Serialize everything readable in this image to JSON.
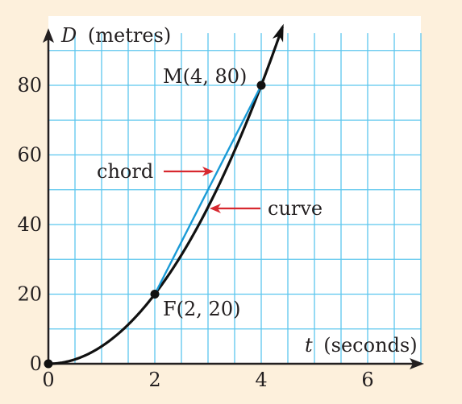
{
  "chart_data": {
    "type": "line",
    "x_axis": {
      "label_var": "t",
      "label_unit": "(seconds)",
      "range": [
        0,
        7
      ],
      "ticks": [
        0,
        2,
        4,
        6
      ],
      "minor_step": 0.5
    },
    "y_axis": {
      "label_var": "D",
      "label_unit": "(metres)",
      "range": [
        0,
        95
      ],
      "ticks": [
        0,
        20,
        40,
        60,
        80
      ],
      "minor_step": 10
    },
    "grid": true,
    "series": [
      {
        "role": "curve",
        "equation": "D = 5t^2",
        "x_range": [
          0,
          4.4
        ],
        "color": "#111111"
      },
      {
        "role": "chord",
        "points": [
          [
            2,
            20
          ],
          [
            4,
            80
          ]
        ],
        "color": "#1a9ad6"
      }
    ],
    "points": [
      {
        "label": "F(2, 20)",
        "x": 2,
        "y": 20
      },
      {
        "label": "M(4, 80)",
        "x": 4,
        "y": 80
      }
    ],
    "annotations": [
      {
        "text": "chord",
        "target": "chord",
        "arrow_color": "#d7282f"
      },
      {
        "text": "curve",
        "target": "curve",
        "arrow_color": "#d7282f"
      }
    ],
    "colors": {
      "background": "#fdf0dc",
      "plot_area": "#ffffff",
      "grid": "#5cc6ee",
      "axes": "#231f20"
    }
  }
}
